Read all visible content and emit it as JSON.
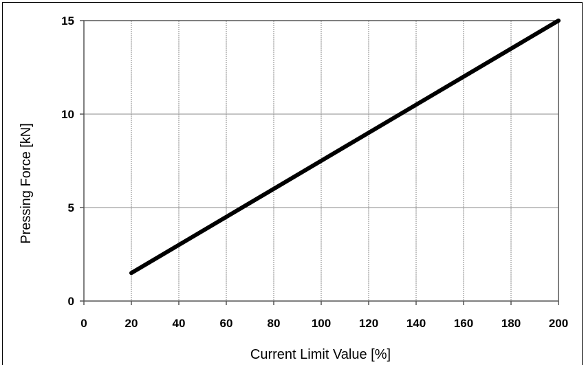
{
  "chart_data": {
    "type": "line",
    "xlabel": "Current Limit Value [%]",
    "ylabel": "Pressing Force [kN]",
    "xlim": [
      0,
      200
    ],
    "ylim": [
      0,
      15
    ],
    "x_ticks": [
      0,
      20,
      40,
      60,
      80,
      100,
      120,
      140,
      160,
      180,
      200
    ],
    "y_ticks": [
      0,
      5,
      10,
      15
    ],
    "grid": true,
    "series": [
      {
        "x": [
          20,
          200
        ],
        "y": [
          1.5,
          15
        ],
        "color": "#000000"
      }
    ]
  }
}
